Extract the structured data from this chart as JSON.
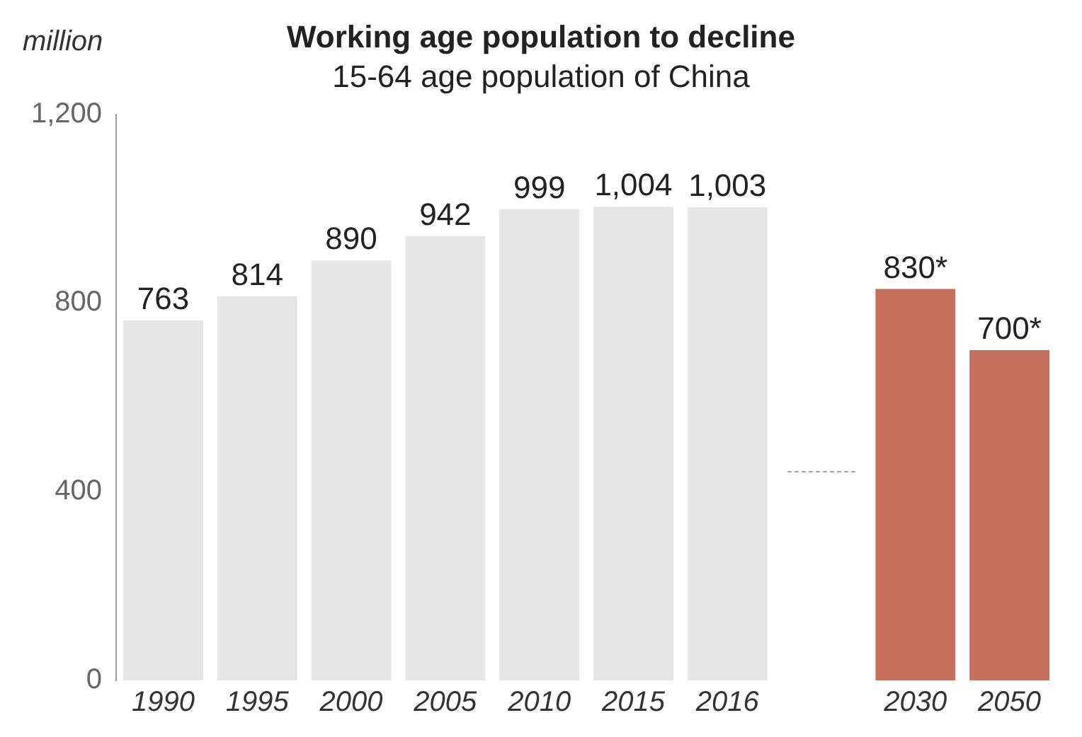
{
  "chart_data": {
    "type": "bar",
    "title": "Working age population to decline",
    "subtitle": "15-64 age population of China",
    "ylabel": "million",
    "categories": [
      "1990",
      "1995",
      "2000",
      "2005",
      "2010",
      "2015",
      "2016",
      null,
      "2030",
      "2050"
    ],
    "values": [
      763,
      814,
      890,
      942,
      999,
      1004,
      1003,
      null,
      830,
      700
    ],
    "colors": [
      "#e6e6e6",
      "#e6e6e6",
      "#e6e6e6",
      "#e6e6e6",
      "#e6e6e6",
      "#e6e6e6",
      "#e6e6e6",
      "#e6e6e6",
      "#c8705e",
      "#c8705e"
    ],
    "value_labels": [
      "763",
      "814",
      "890",
      "942",
      "999",
      "1,004",
      "1,003",
      null,
      "830*",
      "700*"
    ],
    "ylim": [
      0,
      1200
    ],
    "yticks": [
      0,
      400,
      800,
      {
        "value": 1200,
        "label": "1,200"
      }
    ],
    "grid": false,
    "legend": false
  }
}
